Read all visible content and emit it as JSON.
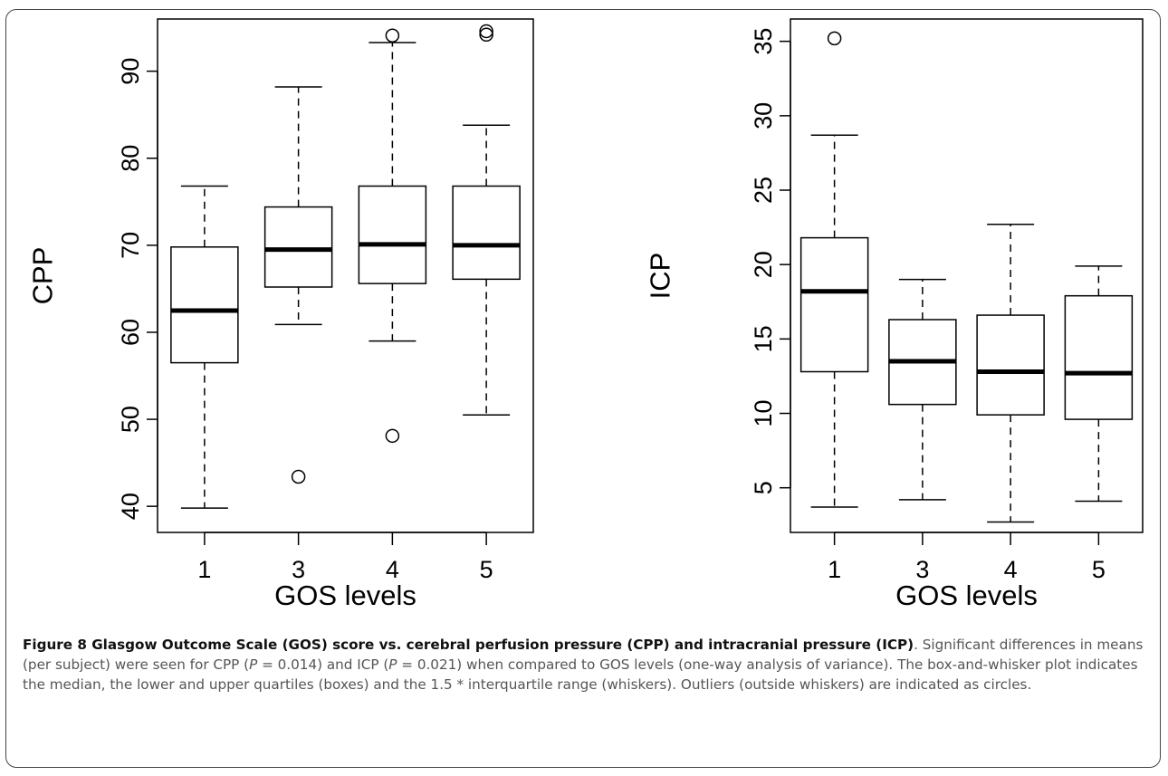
{
  "chart_data": [
    {
      "type": "boxplot",
      "xlabel": "GOS levels",
      "ylabel": "CPP",
      "categories": [
        "1",
        "3",
        "4",
        "5"
      ],
      "ylim": [
        37,
        96
      ],
      "yticks": [
        "40",
        "50",
        "60",
        "70",
        "80",
        "90"
      ],
      "boxes": [
        {
          "category": "1",
          "whisker_low": 39.8,
          "q1": 56.5,
          "median": 62.5,
          "q3": 69.8,
          "whisker_high": 76.8,
          "outliers": []
        },
        {
          "category": "3",
          "whisker_low": 60.9,
          "q1": 65.2,
          "median": 69.5,
          "q3": 74.4,
          "whisker_high": 88.2,
          "outliers": [
            43.4
          ]
        },
        {
          "category": "4",
          "whisker_low": 59.0,
          "q1": 65.6,
          "median": 70.1,
          "q3": 76.8,
          "whisker_high": 93.3,
          "outliers": [
            48.1,
            94.1
          ]
        },
        {
          "category": "5",
          "whisker_low": 50.5,
          "q1": 66.1,
          "median": 70.0,
          "q3": 76.8,
          "whisker_high": 83.8,
          "outliers": [
            94.2,
            94.6
          ]
        }
      ]
    },
    {
      "type": "boxplot",
      "xlabel": "GOS levels",
      "ylabel": "ICP",
      "categories": [
        "1",
        "3",
        "4",
        "5"
      ],
      "ylim": [
        2,
        36.5
      ],
      "yticks": [
        "5",
        "10",
        "15",
        "20",
        "25",
        "30",
        "35"
      ],
      "boxes": [
        {
          "category": "1",
          "whisker_low": 3.7,
          "q1": 12.8,
          "median": 18.2,
          "q3": 21.8,
          "whisker_high": 28.7,
          "outliers": [
            35.2
          ]
        },
        {
          "category": "3",
          "whisker_low": 4.2,
          "q1": 10.6,
          "median": 13.5,
          "q3": 16.3,
          "whisker_high": 19.0,
          "outliers": []
        },
        {
          "category": "4",
          "whisker_low": 2.7,
          "q1": 9.9,
          "median": 12.8,
          "q3": 16.6,
          "whisker_high": 22.7,
          "outliers": []
        },
        {
          "category": "5",
          "whisker_low": 4.1,
          "q1": 9.6,
          "median": 12.7,
          "q3": 17.9,
          "whisker_high": 19.9,
          "outliers": []
        }
      ]
    }
  ],
  "caption": {
    "title": "Figure 8 Glasgow Outcome Scale (GOS) score vs. cerebral perfusion pressure (CPP) and intracranial pressure (ICP)",
    "text_1": ". Significant differences in means (per subject) were seen for CPP (",
    "p_symbol_1": "P",
    "text_2": " = 0.014) and ICP (",
    "p_symbol_2": "P",
    "text_3": " = 0.021) when compared to GOS levels (one-way analysis of variance). The box-and-whisker plot indicates the median, the lower and upper quartiles (boxes) and the 1.5 * interquartile range (whiskers). Outliers (outside whiskers) are indicated as circles."
  }
}
